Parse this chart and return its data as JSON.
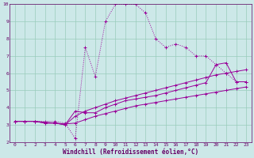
{
  "xlabel": "Windchill (Refroidissement éolien,°C)",
  "bg_color": "#cce8e8",
  "line_color": "#990099",
  "xlim": [
    -0.5,
    23.5
  ],
  "ylim": [
    2,
    10
  ],
  "xticks": [
    0,
    1,
    2,
    3,
    4,
    5,
    6,
    7,
    8,
    9,
    10,
    11,
    12,
    13,
    14,
    15,
    16,
    17,
    18,
    19,
    20,
    21,
    22,
    23
  ],
  "yticks": [
    2,
    3,
    4,
    5,
    6,
    7,
    8,
    9,
    10
  ],
  "series": [
    {
      "x": [
        0,
        1,
        2,
        3,
        4,
        5,
        6,
        7,
        8,
        9,
        10,
        11,
        12,
        13,
        14,
        15,
        16,
        17,
        18,
        19,
        20,
        21,
        22,
        23
      ],
      "y": [
        3.2,
        3.2,
        3.2,
        3.2,
        3.2,
        3.1,
        2.2,
        7.5,
        5.8,
        9.0,
        10.0,
        10.0,
        10.0,
        9.5,
        8.0,
        7.5,
        7.7,
        7.5,
        7.0,
        7.0,
        6.5,
        6.0,
        5.5,
        5.5
      ],
      "dotted": true
    },
    {
      "x": [
        0,
        1,
        2,
        3,
        4,
        5,
        6,
        7,
        8,
        9,
        10,
        11,
        12,
        13,
        14,
        15,
        16,
        17,
        18,
        19,
        20,
        21,
        22,
        23
      ],
      "y": [
        3.2,
        3.2,
        3.2,
        3.1,
        3.1,
        3.0,
        3.8,
        3.7,
        3.7,
        4.0,
        4.2,
        4.4,
        4.5,
        4.6,
        4.7,
        4.85,
        5.0,
        5.15,
        5.3,
        5.45,
        6.5,
        6.6,
        5.5,
        5.5
      ],
      "dotted": false
    },
    {
      "x": [
        0,
        1,
        2,
        3,
        4,
        5,
        6,
        7,
        8,
        9,
        10,
        11,
        12,
        13,
        14,
        15,
        16,
        17,
        18,
        19,
        20,
        21,
        22,
        23
      ],
      "y": [
        3.2,
        3.2,
        3.2,
        3.1,
        3.1,
        3.0,
        3.5,
        3.8,
        4.0,
        4.2,
        4.4,
        4.55,
        4.7,
        4.85,
        5.0,
        5.15,
        5.3,
        5.45,
        5.6,
        5.75,
        5.9,
        6.0,
        6.1,
        6.2
      ],
      "dotted": false
    },
    {
      "x": [
        0,
        1,
        2,
        3,
        4,
        5,
        6,
        7,
        8,
        9,
        10,
        11,
        12,
        13,
        14,
        15,
        16,
        17,
        18,
        19,
        20,
        21,
        22,
        23
      ],
      "y": [
        3.2,
        3.2,
        3.2,
        3.15,
        3.1,
        3.05,
        3.1,
        3.3,
        3.5,
        3.65,
        3.8,
        3.95,
        4.1,
        4.2,
        4.3,
        4.4,
        4.5,
        4.6,
        4.7,
        4.8,
        4.9,
        5.0,
        5.1,
        5.2
      ],
      "dotted": false
    }
  ],
  "grid_color": "#99ccbb",
  "grid_linewidth": 0.5,
  "font_color": "#660066",
  "tick_fontsize": 4.5,
  "xlabel_fontsize": 5.5
}
